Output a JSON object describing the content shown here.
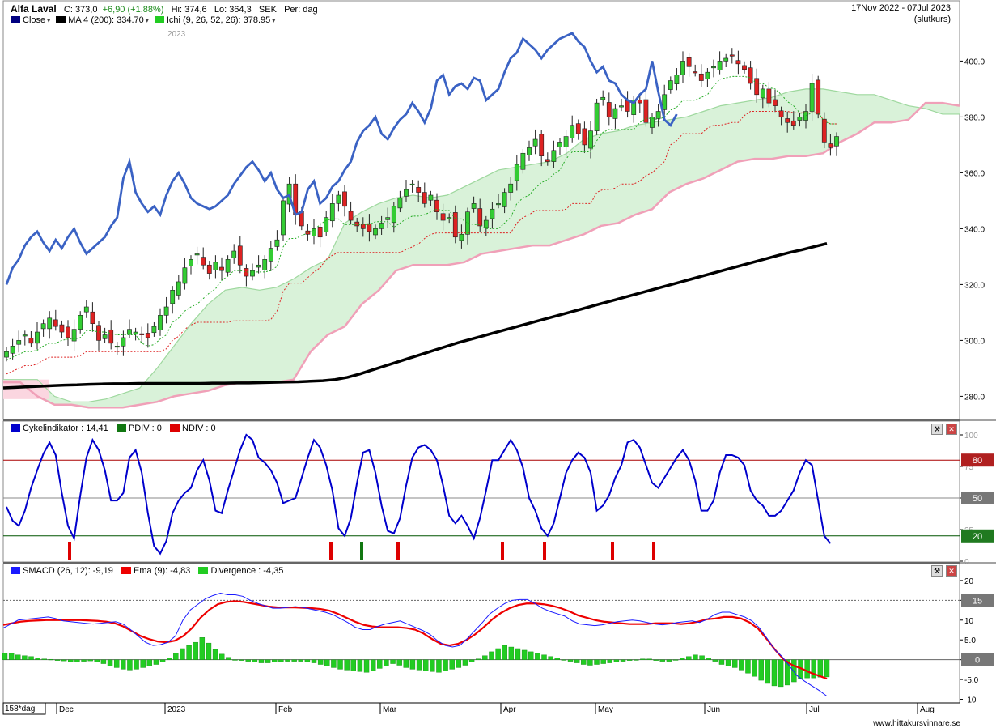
{
  "header": {
    "symbol": "Alfa Laval",
    "close_label": "C:",
    "close_value": "373,0",
    "change": "+6,90 (+1,88%)",
    "high_label": "Hi:",
    "high_value": "374,6",
    "low_label": "Lo:",
    "low_value": "364,3",
    "currency": "SEK",
    "period": "Per: dag",
    "date_range": "17Nov 2022 - 07Jul 2023",
    "price_type": "(slutkurs)",
    "legend": [
      {
        "label": "Close",
        "color": "#000080"
      },
      {
        "label": "MA 4 (200): 334.70",
        "color": "#000000"
      },
      {
        "label": "Ichi (9, 26, 52, 26): 378.95",
        "color": "#22cc22"
      }
    ],
    "year_marker": "2023"
  },
  "colors": {
    "up_candle": "#33cc33",
    "down_candle": "#dd2222",
    "close_line": "#3a62c4",
    "ma_line": "#000000",
    "cloud_fill": "#d9f2d9",
    "cloud_border": "#9ed89e",
    "cloud_bear_fill": "#fbd6e0",
    "cloud_bear_border": "#f0a0b8",
    "tenkan": "#22aa22",
    "kijun": "#dd2222",
    "cycle_line": "#0000cc",
    "macd_line": "#1a1aff",
    "ema_line": "#ee0000",
    "divergence_bar": "#22cc22"
  },
  "x_axis": {
    "label_box": "158*dag",
    "months": [
      "Dec",
      "2023",
      "Feb",
      "Mar",
      "Apr",
      "May",
      "Jun",
      "Jul",
      "Aug"
    ]
  },
  "footer": {
    "website": "www.hittakursvinnare.se"
  },
  "panels": {
    "cycle": {
      "legend": [
        {
          "label": "Cykelindikator : 14,41",
          "color": "#0000cc"
        },
        {
          "label": "PDIV : 0",
          "color": "#117711"
        },
        {
          "label": "NDIV : 0",
          "color": "#dd0000"
        }
      ],
      "y_ticks": [
        "100",
        "75",
        "50",
        "25",
        "0"
      ],
      "level_boxes": [
        "80",
        "50",
        "20"
      ]
    },
    "macd": {
      "legend": [
        {
          "label": "SMACD (26, 12): -9,19",
          "color": "#1a1aff"
        },
        {
          "label": "Ema (9): -4,83",
          "color": "#ee0000"
        },
        {
          "label": "Divergence : -4,35",
          "color": "#22cc22"
        }
      ],
      "y_ticks": [
        "20",
        "15",
        "10",
        "5.0",
        "0",
        "-5.0",
        "-10"
      ],
      "level_boxes": [
        "15",
        "0"
      ]
    },
    "price": {
      "y_ticks": [
        "400.0",
        "380.0",
        "360.0",
        "340.0",
        "320.0",
        "300.0",
        "280.0"
      ]
    }
  },
  "chart_data": [
    {
      "type": "line",
      "title": "Alfa Laval",
      "x_range": [
        "2022-11-17",
        "2023-07-07"
      ],
      "ylim": [
        272,
        412
      ],
      "grid": false,
      "legend": "top-left",
      "series": [
        {
          "name": "Close",
          "kind": "candlestick",
          "values": [
            296,
            298,
            300,
            302,
            299,
            303,
            306,
            308,
            305,
            303,
            301,
            304,
            309,
            312,
            306,
            300,
            302,
            299,
            298,
            301,
            304,
            303,
            302,
            301,
            305,
            309,
            312,
            318,
            321,
            326,
            329,
            331,
            327,
            324,
            328,
            325,
            329,
            332,
            327,
            323,
            325,
            327,
            329,
            333,
            336,
            350,
            356,
            345,
            341,
            338,
            340,
            337,
            344,
            349,
            352,
            348,
            343,
            341,
            340,
            339,
            340,
            342,
            344,
            348,
            351,
            354,
            356,
            353,
            349,
            352,
            346,
            343,
            344,
            337,
            338,
            346,
            349,
            341,
            343,
            347,
            349,
            353,
            356,
            363,
            367,
            369,
            372,
            366,
            364,
            368,
            371,
            373,
            377,
            374,
            370,
            375,
            385,
            387,
            380,
            383,
            384,
            382,
            386,
            385,
            378,
            380,
            382,
            388,
            393,
            395,
            400,
            398,
            396,
            393,
            396,
            398,
            400,
            401,
            402,
            399,
            397,
            392,
            388,
            390,
            385,
            384,
            380,
            378,
            377,
            380,
            382,
            392,
            381,
            371,
            369,
            373
          ]
        },
        {
          "name": "MA 4 (200): 334.70",
          "kind": "line",
          "values": [
            283,
            283.2,
            283.4,
            283.6,
            283.8,
            284,
            284.1,
            284.3,
            284.4,
            284.5,
            284.5,
            284.6,
            284.6,
            284.6,
            284.6,
            284.6,
            284.6,
            284.7,
            284.7,
            284.8,
            284.8,
            284.9,
            285,
            285.1,
            285.2,
            285.4,
            285.6,
            286,
            286.8,
            288,
            289.4,
            290.8,
            292.2,
            293.6,
            295,
            296.4,
            297.8,
            299.2,
            300.4,
            301.6,
            302.8,
            304,
            305.2,
            306.4,
            307.6,
            308.8,
            310,
            311.2,
            312.4,
            313.6,
            314.8,
            316,
            317.2,
            318.4,
            319.6,
            320.8,
            322,
            323.2,
            324.4,
            325.6,
            326.8,
            328,
            329.2,
            330.4,
            331.5,
            332.5,
            333.6,
            334.7
          ]
        },
        {
          "name": "Ichi (9, 26, 52, 26): 378.95",
          "kind": "cloud",
          "senkou_a": [
            286,
            286,
            286,
            280,
            278,
            278,
            279,
            281,
            283,
            290,
            298,
            306,
            313,
            318,
            319,
            318,
            319,
            322,
            326,
            329,
            342,
            346,
            349,
            351,
            352,
            351,
            352,
            355,
            358,
            361,
            362,
            363,
            364,
            367,
            372,
            374,
            375,
            377,
            378,
            379,
            380,
            382,
            384,
            385,
            386,
            387,
            389,
            390,
            390,
            389,
            388,
            388,
            386,
            384,
            383,
            381,
            381
          ],
          "senkou_b": [
            285,
            285,
            280,
            277,
            277,
            276,
            276,
            276,
            277,
            278,
            280,
            281,
            282,
            284,
            285,
            285,
            285,
            286,
            296,
            302,
            305,
            313,
            318,
            325,
            327,
            327,
            327,
            328,
            331,
            332,
            333,
            334,
            334,
            336,
            338,
            341,
            342,
            345,
            347,
            353,
            356,
            358,
            361,
            364,
            365,
            365,
            366,
            366,
            367,
            371,
            374,
            378,
            378,
            379,
            385,
            385,
            384
          ]
        }
      ]
    },
    {
      "type": "line",
      "title": "Cykelindikator : 14,41",
      "ylim": [
        0,
        100
      ],
      "y_levels": [
        20,
        50,
        80
      ],
      "series": [
        {
          "name": "Cykelindikator : 14,41",
          "values": [
            43,
            32,
            28,
            40,
            58,
            72,
            85,
            94,
            84,
            54,
            28,
            18,
            52,
            82,
            96,
            88,
            72,
            48,
            48,
            54,
            82,
            88,
            70,
            38,
            12,
            6,
            16,
            38,
            48,
            54,
            58,
            72,
            80,
            64,
            40,
            38,
            56,
            72,
            88,
            100,
            96,
            82,
            78,
            72,
            62,
            46,
            48,
            50,
            66,
            82,
            96,
            90,
            76,
            56,
            26,
            20,
            34,
            62,
            86,
            88,
            70,
            44,
            24,
            22,
            34,
            60,
            82,
            90,
            92,
            88,
            80,
            60,
            36,
            30,
            36,
            28,
            18,
            34,
            56,
            80,
            80,
            88,
            96,
            88,
            74,
            50,
            40,
            26,
            20,
            30,
            50,
            70,
            80,
            86,
            82,
            70,
            40,
            44,
            52,
            66,
            76,
            94,
            96,
            90,
            76,
            62,
            58,
            66,
            74,
            82,
            88,
            80,
            64,
            40,
            40,
            48,
            70,
            84,
            84,
            82,
            76,
            56,
            48,
            44,
            36,
            36,
            40,
            48,
            56,
            70,
            80,
            76,
            48,
            20,
            14
          ]
        }
      ],
      "ndiv_markers": 9,
      "pdiv_markers": 1
    },
    {
      "type": "line",
      "title": "SMACD (26, 12): -9,19",
      "ylim": [
        -10.5,
        21
      ],
      "y_levels": [
        0,
        15
      ],
      "series": [
        {
          "name": "SMACD (26, 12): -9,19",
          "values": [
            8,
            9,
            10,
            10.2,
            10.4,
            10.6,
            10.8,
            10.4,
            9.8,
            9.6,
            9.4,
            9.2,
            9,
            9.2,
            9.4,
            9.6,
            9,
            7.6,
            6,
            4.4,
            3.6,
            3.8,
            4.4,
            6,
            10,
            12.6,
            14,
            15.4,
            16.2,
            16.8,
            16.4,
            16.4,
            16,
            15,
            14.2,
            13.6,
            13,
            13,
            13.2,
            13.4,
            13.2,
            12.8,
            12.4,
            12,
            11.4,
            10.4,
            9.4,
            8.2,
            7.6,
            7.6,
            8.4,
            9,
            9.4,
            9.8,
            9,
            8.2,
            7.4,
            6.4,
            4.8,
            3.6,
            3.2,
            3.6,
            5.4,
            7.4,
            9.4,
            11.6,
            13,
            14.2,
            15,
            15.2,
            15.2,
            14.2,
            13,
            12.2,
            11.6,
            11,
            9.8,
            9,
            8.8,
            8.6,
            8.8,
            9.2,
            9.6,
            9.8,
            10,
            9.8,
            9.4,
            9,
            8.8,
            9,
            9.4,
            9.6,
            9.8,
            9.4,
            10.2,
            11.4,
            12,
            12,
            11.4,
            10.8,
            9.8,
            8,
            5.4,
            2.6,
            0.8,
            -1.6,
            -4,
            -5.4,
            -6.6,
            -7.8,
            -9.2
          ]
        },
        {
          "name": "Ema (9): -4,83",
          "values": [
            8.8,
            9.2,
            9.6,
            9.8,
            9.9,
            10,
            10,
            10,
            10,
            10,
            9.9,
            9.8,
            9.6,
            9.2,
            8.4,
            7.2,
            6,
            5.2,
            4.6,
            4.4,
            4.8,
            6,
            8,
            10.6,
            12.6,
            14,
            14.6,
            14.8,
            14.6,
            14.2,
            13.8,
            13.4,
            13.2,
            13.2,
            13.2,
            13.1,
            13,
            12.8,
            12.4,
            11.6,
            10.6,
            9.6,
            8.8,
            8.4,
            8.2,
            8.2,
            8.2,
            8,
            7.6,
            6.6,
            5.2,
            4,
            3.6,
            4,
            5,
            6.4,
            8.2,
            10.2,
            11.8,
            13,
            13.8,
            14.2,
            14.2,
            14,
            13.6,
            13,
            12.2,
            11.2,
            10.6,
            10,
            9.6,
            9.4,
            9.2,
            9,
            9,
            9,
            9.2,
            9.2,
            9.2,
            9,
            9.2,
            9.6,
            10.2,
            10.4,
            10.8,
            10.8,
            10.4,
            9.4,
            7.8,
            5.2,
            2.4,
            0,
            -1.4,
            -2.2,
            -3.2,
            -4,
            -4.8
          ]
        },
        {
          "name": "Divergence : -4,35",
          "kind": "histogram",
          "values": [
            1.6,
            1.6,
            1.2,
            1,
            0.8,
            0.5,
            0.2,
            0.1,
            -0.2,
            -0.3,
            -0.5,
            -0.6,
            -0.4,
            -0.3,
            -0.6,
            -1,
            -1.6,
            -2,
            -2.4,
            -2.6,
            -2.4,
            -2,
            -1.6,
            -1.2,
            -0.6,
            0.4,
            1.6,
            2.8,
            3.6,
            4.4,
            5.6,
            4.2,
            2.6,
            1.4,
            0.6,
            0,
            -0.2,
            -0.4,
            -0.6,
            -0.8,
            -0.8,
            -0.6,
            -0.5,
            -0.4,
            -0.4,
            -0.4,
            -0.5,
            -0.8,
            -1.2,
            -1.6,
            -2,
            -2.4,
            -2.6,
            -2.8,
            -3,
            -3.2,
            -2.8,
            -2.2,
            -1.6,
            -1,
            -1.4,
            -2,
            -2.4,
            -2.6,
            -2.8,
            -3,
            -3.2,
            -2.8,
            -2.4,
            -2,
            -1.4,
            -0.6,
            0.2,
            1,
            2,
            2.8,
            3.6,
            3.2,
            2.8,
            2.4,
            2,
            1.6,
            1.2,
            0.8,
            0.4,
            0,
            -0.4,
            -0.8,
            -1.2,
            -1.4,
            -1.2,
            -1,
            -0.8,
            -0.6,
            -0.4,
            -0.2,
            0,
            0.2,
            0.2,
            -0.2,
            -0.4,
            -0.4,
            0,
            0.4,
            0.8,
            1.2,
            1,
            0.4,
            -0.4,
            -1.2,
            -1.6,
            -2,
            -2.6,
            -3.4,
            -4.2,
            -5.2,
            -6,
            -6.6,
            -6.8,
            -6.4,
            -5.6,
            -4.8,
            -4.6,
            -4.6,
            -4.4,
            -4.35
          ]
        }
      ]
    }
  ]
}
